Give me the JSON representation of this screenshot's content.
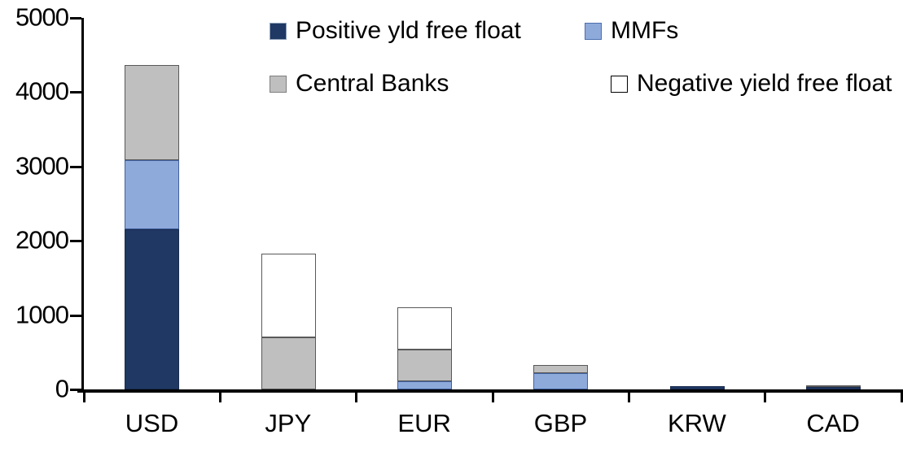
{
  "chart_data": {
    "type": "bar",
    "stacked": true,
    "title": "",
    "xlabel": "",
    "ylabel": "",
    "categories": [
      "USD",
      "JPY",
      "EUR",
      "GBP",
      "KRW",
      "CAD"
    ],
    "series": [
      {
        "name": "Positive yld free float",
        "color": "#1F3864",
        "border": "#1A2C4E",
        "swatch_border": "#8EA0B8",
        "values": [
          2150,
          0,
          0,
          0,
          45,
          35
        ]
      },
      {
        "name": "MMFs",
        "color": "#8EAADB",
        "border": "#41619E",
        "swatch_border": "#4C6FAF",
        "values": [
          930,
          0,
          110,
          220,
          0,
          0
        ]
      },
      {
        "name": "Central Banks",
        "color": "#BFBFBF",
        "border": "#595959",
        "swatch_border": "#7F7F7F",
        "values": [
          1290,
          700,
          430,
          110,
          0,
          25
        ]
      },
      {
        "name": "Negative yield free float",
        "color": "#FFFFFF",
        "border": "#595959",
        "swatch_border": "#000000",
        "values": [
          0,
          1130,
          560,
          0,
          0,
          0
        ]
      }
    ],
    "ylim": [
      0,
      5000
    ],
    "ytick_interval": 1000,
    "ytick_labels": [
      "0",
      "1000",
      "2000",
      "3000",
      "4000",
      "5000"
    ],
    "grid": false,
    "legend_position": "top",
    "axis_color": "#000000",
    "background_color": "#FFFFFF"
  }
}
